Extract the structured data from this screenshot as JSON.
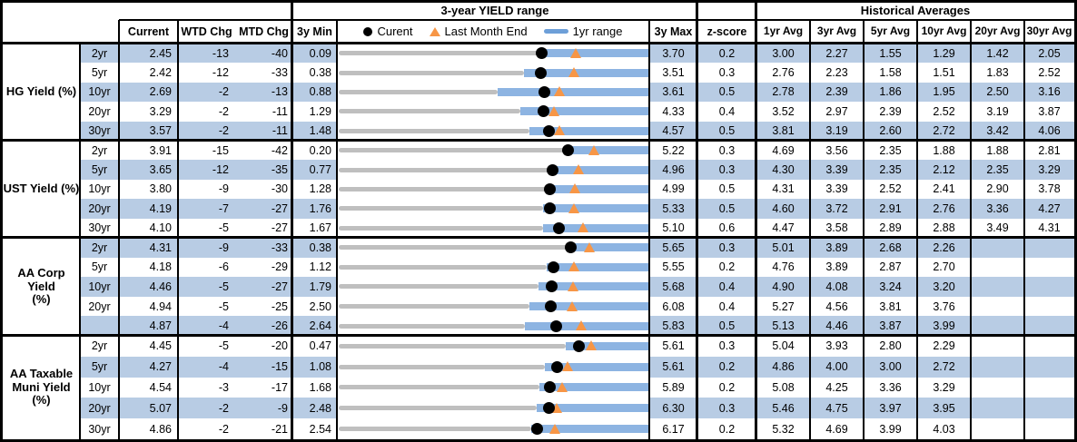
{
  "header": {
    "yield_range_title": "3-year YIELD range",
    "historical_title": "Historical Averages",
    "current": "Current",
    "wtd": "WTD Chg",
    "mtd": "MTD Chg",
    "min3y": "3y Min",
    "max3y": "3y Max",
    "zscore": "z-score",
    "avg_cols": [
      "1yr Avg",
      "3yr Avg",
      "5yr Avg",
      "10yr Avg",
      "20yr Avg",
      "30yr Avg"
    ],
    "legend": {
      "current_label": "Curent",
      "last_month_label": "Last Month End",
      "range_label": "1yr range"
    }
  },
  "colors": {
    "row_shade": "#B8CCE4",
    "bar_blue": "#8DB4E2",
    "legend_bar_blue": "#6D9FD8",
    "gray_line": "#BFBFBF",
    "triangle_orange": "#F79646",
    "dot_black": "#000000",
    "border_black": "#000000"
  },
  "chart_data": {
    "type": "table",
    "title": "3-year YIELD range",
    "legend": [
      "Curent",
      "Last Month End",
      "1yr range"
    ],
    "columns": [
      "Current",
      "WTD Chg",
      "MTD Chg",
      "3y Min",
      "3-year YIELD range",
      "3y Max",
      "z-score",
      "1yr Avg",
      "3yr Avg",
      "5yr Avg",
      "10yr Avg",
      "20yr Avg",
      "30yr Avg"
    ],
    "groups": [
      {
        "label": "HG Yield (%)",
        "rows": [
          {
            "tenor": "2yr",
            "current": "2.45",
            "wtd": "-13",
            "mtd": "-40",
            "min": "0.09",
            "max": "3.70",
            "z": "0.2",
            "avgs": [
              "3.00",
              "2.27",
              "1.55",
              "1.29",
              "1.42",
              "2.05"
            ],
            "range": {
              "min": 0.09,
              "max": 3.7,
              "cur": 2.45,
              "lme": 2.85,
              "lo": 2.42,
              "hi": 3.7
            }
          },
          {
            "tenor": "5yr",
            "current": "2.42",
            "wtd": "-12",
            "mtd": "-33",
            "min": "0.38",
            "max": "3.51",
            "z": "0.3",
            "avgs": [
              "2.76",
              "2.23",
              "1.58",
              "1.51",
              "1.83",
              "2.52"
            ],
            "range": {
              "min": 0.38,
              "max": 3.51,
              "cur": 2.42,
              "lme": 2.75,
              "lo": 2.25,
              "hi": 3.51
            }
          },
          {
            "tenor": "10yr",
            "current": "2.69",
            "wtd": "-2",
            "mtd": "-13",
            "min": "0.88",
            "max": "3.61",
            "z": "0.5",
            "avgs": [
              "2.78",
              "2.39",
              "1.86",
              "1.95",
              "2.50",
              "3.16"
            ],
            "range": {
              "min": 0.88,
              "max": 3.61,
              "cur": 2.69,
              "lme": 2.82,
              "lo": 2.28,
              "hi": 3.61
            }
          },
          {
            "tenor": "20yr",
            "current": "3.29",
            "wtd": "-2",
            "mtd": "-11",
            "min": "1.29",
            "max": "4.33",
            "z": "0.4",
            "avgs": [
              "3.52",
              "2.97",
              "2.39",
              "2.52",
              "3.19",
              "3.87"
            ],
            "range": {
              "min": 1.29,
              "max": 4.33,
              "cur": 3.29,
              "lme": 3.4,
              "lo": 3.07,
              "hi": 4.33
            }
          },
          {
            "tenor": "30yr",
            "current": "3.57",
            "wtd": "-2",
            "mtd": "-11",
            "min": "1.48",
            "max": "4.57",
            "z": "0.5",
            "avgs": [
              "3.81",
              "3.19",
              "2.60",
              "2.72",
              "3.42",
              "4.06"
            ],
            "range": {
              "min": 1.48,
              "max": 4.57,
              "cur": 3.57,
              "lme": 3.68,
              "lo": 3.38,
              "hi": 4.57
            }
          }
        ]
      },
      {
        "label": "UST Yield (%)",
        "rows": [
          {
            "tenor": "2yr",
            "current": "3.91",
            "wtd": "-15",
            "mtd": "-42",
            "min": "0.20",
            "max": "5.22",
            "z": "0.3",
            "avgs": [
              "4.69",
              "3.56",
              "2.35",
              "1.88",
              "1.88",
              "2.81"
            ],
            "range": {
              "min": 0.2,
              "max": 5.22,
              "cur": 3.91,
              "lme": 4.33,
              "lo": 3.84,
              "hi": 5.22
            }
          },
          {
            "tenor": "5yr",
            "current": "3.65",
            "wtd": "-12",
            "mtd": "-35",
            "min": "0.77",
            "max": "4.96",
            "z": "0.3",
            "avgs": [
              "4.30",
              "3.39",
              "2.35",
              "2.12",
              "2.35",
              "3.29"
            ],
            "range": {
              "min": 0.77,
              "max": 4.96,
              "cur": 3.65,
              "lme": 4.0,
              "lo": 3.69,
              "hi": 4.96
            }
          },
          {
            "tenor": "10yr",
            "current": "3.80",
            "wtd": "-9",
            "mtd": "-30",
            "min": "1.28",
            "max": "4.99",
            "z": "0.5",
            "avgs": [
              "4.31",
              "3.39",
              "2.52",
              "2.41",
              "2.90",
              "3.78"
            ],
            "range": {
              "min": 1.28,
              "max": 4.99,
              "cur": 3.8,
              "lme": 4.1,
              "lo": 3.82,
              "hi": 4.99
            }
          },
          {
            "tenor": "20yr",
            "current": "4.19",
            "wtd": "-7",
            "mtd": "-27",
            "min": "1.76",
            "max": "5.33",
            "z": "0.5",
            "avgs": [
              "4.60",
              "3.72",
              "2.91",
              "2.76",
              "3.36",
              "4.27"
            ],
            "range": {
              "min": 1.76,
              "max": 5.33,
              "cur": 4.19,
              "lme": 4.46,
              "lo": 4.11,
              "hi": 5.33
            }
          },
          {
            "tenor": "30yr",
            "current": "4.10",
            "wtd": "-5",
            "mtd": "-27",
            "min": "1.67",
            "max": "5.10",
            "z": "0.6",
            "avgs": [
              "4.47",
              "3.58",
              "2.89",
              "2.88",
              "3.49",
              "4.31"
            ],
            "range": {
              "min": 1.67,
              "max": 5.1,
              "cur": 4.1,
              "lme": 4.37,
              "lo": 3.93,
              "hi": 5.1
            }
          }
        ]
      },
      {
        "label": "AA Corp Yield\n(%)",
        "rows": [
          {
            "tenor": "2yr",
            "current": "4.31",
            "wtd": "-9",
            "mtd": "-33",
            "min": "0.38",
            "max": "5.65",
            "z": "0.3",
            "avgs": [
              "5.01",
              "3.89",
              "2.68",
              "2.26",
              "",
              ""
            ],
            "range": {
              "min": 0.38,
              "max": 5.65,
              "cur": 4.31,
              "lme": 4.64,
              "lo": 4.3,
              "hi": 5.65
            }
          },
          {
            "tenor": "5yr",
            "current": "4.18",
            "wtd": "-6",
            "mtd": "-29",
            "min": "1.12",
            "max": "5.55",
            "z": "0.2",
            "avgs": [
              "4.76",
              "3.89",
              "2.87",
              "2.70",
              "",
              ""
            ],
            "range": {
              "min": 1.12,
              "max": 5.55,
              "cur": 4.18,
              "lme": 4.47,
              "lo": 4.09,
              "hi": 5.55
            }
          },
          {
            "tenor": "10yr",
            "current": "4.46",
            "wtd": "-5",
            "mtd": "-27",
            "min": "1.79",
            "max": "5.68",
            "z": "0.4",
            "avgs": [
              "4.90",
              "4.08",
              "3.24",
              "3.20",
              "",
              ""
            ],
            "range": {
              "min": 1.79,
              "max": 5.68,
              "cur": 4.46,
              "lme": 4.73,
              "lo": 4.29,
              "hi": 5.68
            }
          },
          {
            "tenor": "20yr",
            "current": "4.94",
            "wtd": "-5",
            "mtd": "-25",
            "min": "2.50",
            "max": "6.08",
            "z": "0.4",
            "avgs": [
              "5.27",
              "4.56",
              "3.81",
              "3.76",
              "",
              ""
            ],
            "range": {
              "min": 2.5,
              "max": 6.08,
              "cur": 4.94,
              "lme": 5.19,
              "lo": 4.7,
              "hi": 6.08
            }
          },
          {
            "tenor": "",
            "current": "4.87",
            "wtd": "-4",
            "mtd": "-26",
            "min": "2.64",
            "max": "5.83",
            "z": "0.5",
            "avgs": [
              "5.13",
              "4.46",
              "3.87",
              "3.99",
              "",
              ""
            ],
            "range": {
              "min": 2.64,
              "max": 5.83,
              "cur": 4.87,
              "lme": 5.13,
              "lo": 4.55,
              "hi": 5.83
            }
          }
        ]
      },
      {
        "label": "AA Taxable\nMuni Yield\n(%)",
        "rows": [
          {
            "tenor": "2yr",
            "current": "4.45",
            "wtd": "-5",
            "mtd": "-20",
            "min": "0.47",
            "max": "5.61",
            "z": "0.3",
            "avgs": [
              "5.04",
              "3.93",
              "2.80",
              "2.29",
              "",
              ""
            ],
            "range": {
              "min": 0.47,
              "max": 5.61,
              "cur": 4.45,
              "lme": 4.65,
              "lo": 4.23,
              "hi": 5.61
            }
          },
          {
            "tenor": "5yr",
            "current": "4.27",
            "wtd": "-4",
            "mtd": "-15",
            "min": "1.08",
            "max": "5.61",
            "z": "0.2",
            "avgs": [
              "4.86",
              "4.00",
              "3.00",
              "2.72",
              "",
              ""
            ],
            "range": {
              "min": 1.08,
              "max": 5.61,
              "cur": 4.27,
              "lme": 4.42,
              "lo": 4.09,
              "hi": 5.61
            }
          },
          {
            "tenor": "10yr",
            "current": "4.54",
            "wtd": "-3",
            "mtd": "-17",
            "min": "1.68",
            "max": "5.89",
            "z": "0.2",
            "avgs": [
              "5.08",
              "4.25",
              "3.36",
              "3.29",
              "",
              ""
            ],
            "range": {
              "min": 1.68,
              "max": 5.89,
              "cur": 4.54,
              "lme": 4.71,
              "lo": 4.4,
              "hi": 5.89
            }
          },
          {
            "tenor": "20yr",
            "current": "5.07",
            "wtd": "-2",
            "mtd": "-9",
            "min": "2.48",
            "max": "6.30",
            "z": "0.3",
            "avgs": [
              "5.46",
              "4.75",
              "3.97",
              "3.95",
              "",
              ""
            ],
            "range": {
              "min": 2.48,
              "max": 6.3,
              "cur": 5.07,
              "lme": 5.16,
              "lo": 4.91,
              "hi": 6.3
            }
          },
          {
            "tenor": "30yr",
            "current": "4.86",
            "wtd": "-2",
            "mtd": "-21",
            "min": "2.54",
            "max": "6.17",
            "z": "0.2",
            "avgs": [
              "5.32",
              "4.69",
              "3.99",
              "4.03",
              "",
              ""
            ],
            "range": {
              "min": 2.54,
              "max": 6.17,
              "cur": 4.86,
              "lme": 5.07,
              "lo": 4.79,
              "hi": 6.17
            }
          }
        ]
      }
    ]
  }
}
